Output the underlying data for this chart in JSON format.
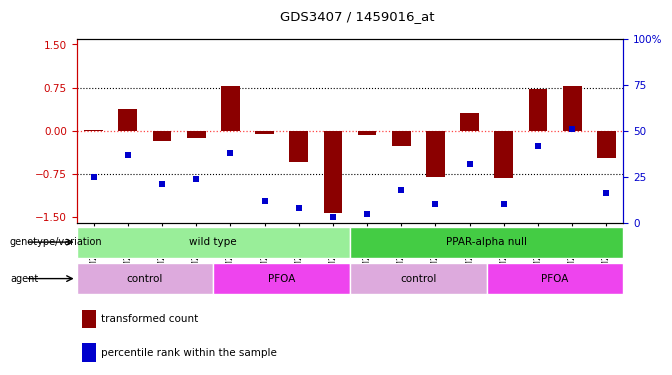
{
  "title": "GDS3407 / 1459016_at",
  "samples": [
    "GSM247116",
    "GSM247117",
    "GSM247118",
    "GSM247119",
    "GSM247120",
    "GSM247121",
    "GSM247122",
    "GSM247123",
    "GSM247124",
    "GSM247125",
    "GSM247126",
    "GSM247127",
    "GSM247128",
    "GSM247129",
    "GSM247130",
    "GSM247131"
  ],
  "bar_values": [
    0.02,
    0.38,
    -0.18,
    -0.12,
    0.78,
    -0.05,
    -0.55,
    -1.42,
    -0.08,
    -0.27,
    -0.8,
    0.3,
    -0.82,
    0.72,
    0.77,
    -0.48
  ],
  "blue_values": [
    25,
    37,
    21,
    24,
    38,
    12,
    8,
    3,
    5,
    18,
    10,
    32,
    10,
    42,
    51,
    16
  ],
  "bar_color": "#8B0000",
  "blue_color": "#0000CD",
  "ylim_left": [
    -1.6,
    1.6
  ],
  "ylim_right": [
    0,
    100
  ],
  "yticks_left": [
    -1.5,
    -0.75,
    0.0,
    0.75,
    1.5
  ],
  "yticks_right": [
    0,
    25,
    50,
    75,
    100
  ],
  "ytick_labels_right": [
    "0",
    "25",
    "50",
    "75",
    "100%"
  ],
  "hlines": [
    0.75,
    -0.75
  ],
  "zero_line_color": "#FF4444",
  "dot_hline_color": "black",
  "genotype_groups": [
    {
      "label": "wild type",
      "start": 0,
      "end": 7,
      "color": "#99EE99"
    },
    {
      "label": "PPAR-alpha null",
      "start": 8,
      "end": 15,
      "color": "#44CC44"
    }
  ],
  "agent_groups": [
    {
      "label": "control",
      "start": 0,
      "end": 3,
      "color": "#DDAADD"
    },
    {
      "label": "PFOA",
      "start": 4,
      "end": 7,
      "color": "#EE44EE"
    },
    {
      "label": "control",
      "start": 8,
      "end": 11,
      "color": "#DDAADD"
    },
    {
      "label": "PFOA",
      "start": 12,
      "end": 15,
      "color": "#EE44EE"
    }
  ],
  "legend_bar_label": "transformed count",
  "legend_blue_label": "percentile rank within the sample",
  "genotype_label": "genotype/variation",
  "agent_label": "agent",
  "bar_width": 0.55
}
